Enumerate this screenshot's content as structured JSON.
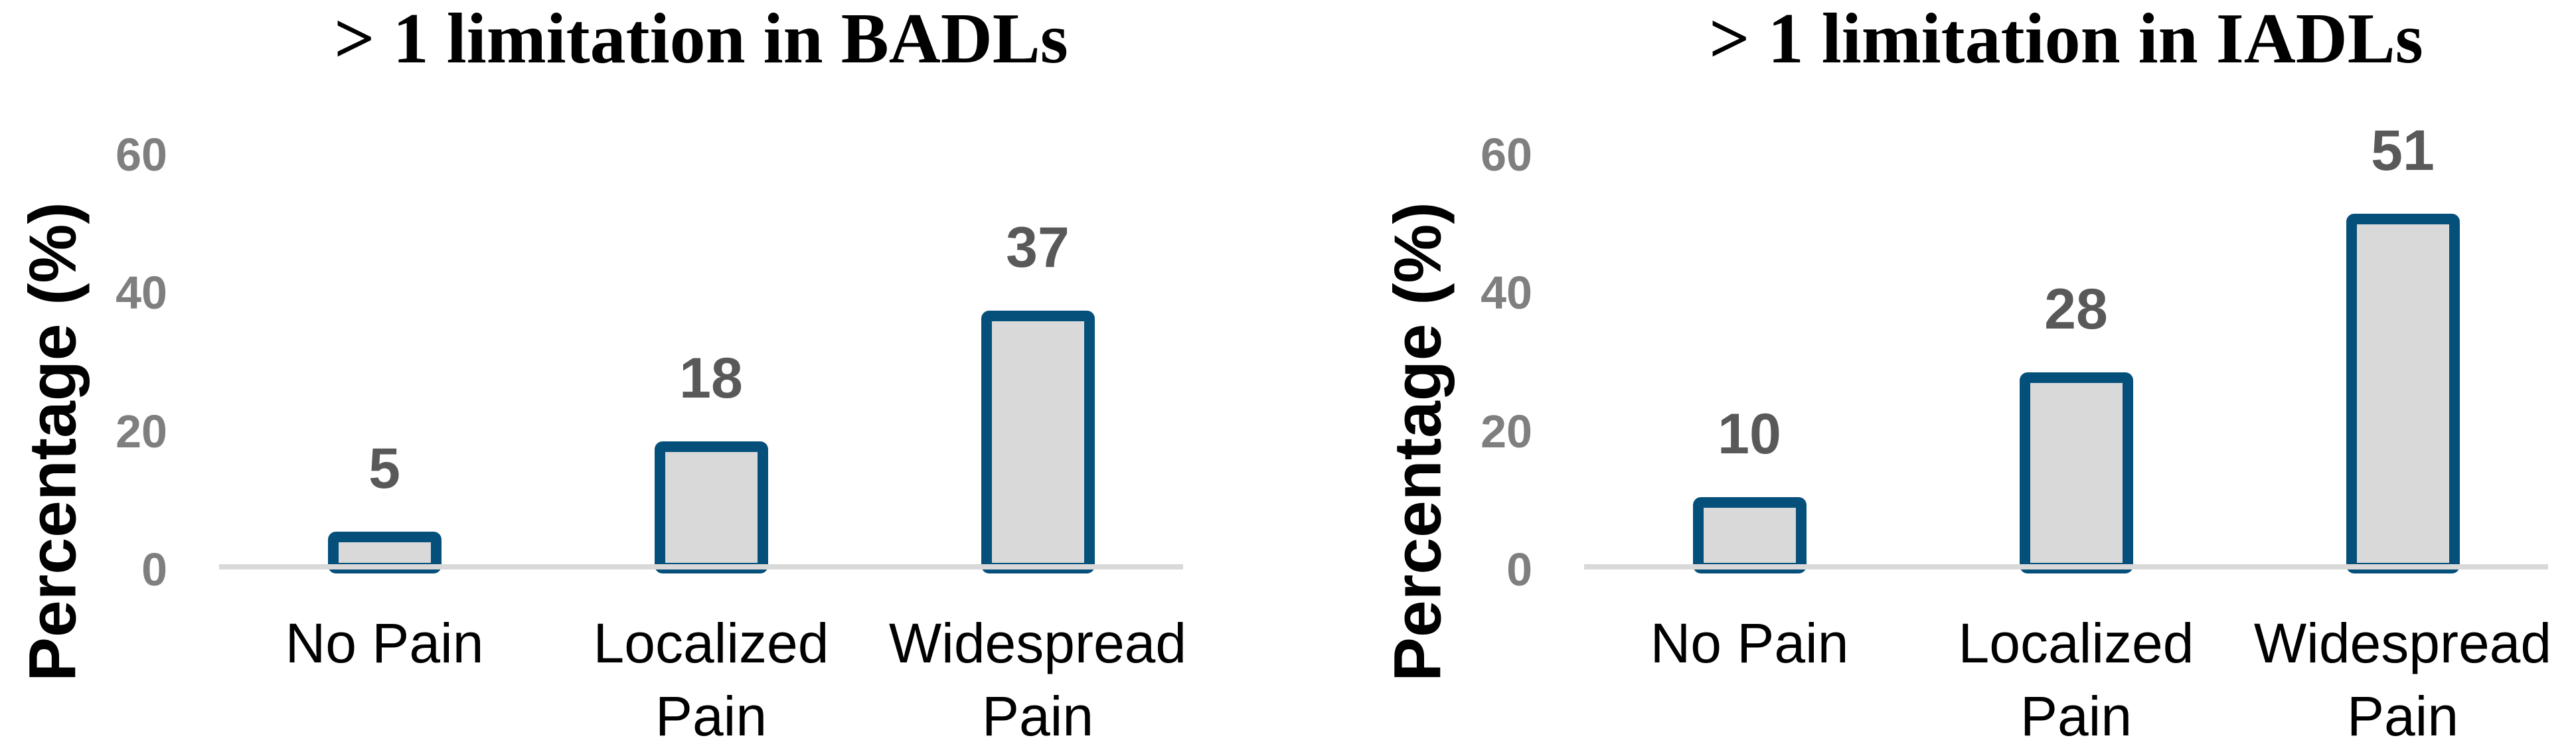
{
  "figure": {
    "background": "#ffffff"
  },
  "style": {
    "bar_fill": "#d9d9d9",
    "bar_border": "#05507b",
    "axis_line_color": "#d9d9d9",
    "tick_color": "#7f7f7f",
    "value_label_color": "#595959",
    "category_color": "#000000",
    "title_color": "#000000",
    "ylabel_color": "#000000"
  },
  "chart_data": [
    {
      "type": "bar",
      "title": "> 1 limitation in BADLs",
      "ylabel": "Percentage (%)",
      "xlabel": "",
      "categories": [
        "No Pain",
        "Localized Pain",
        "Widespread Pain"
      ],
      "category_lines": [
        [
          "No Pain"
        ],
        [
          "Localized",
          "Pain"
        ],
        [
          "Widespread",
          "Pain"
        ]
      ],
      "values": [
        5,
        18,
        37
      ],
      "value_labels": [
        "5",
        "18",
        "37"
      ],
      "yticks": [
        60,
        40,
        20,
        0
      ],
      "ylim": [
        0,
        60
      ],
      "grid": false,
      "legend": false
    },
    {
      "type": "bar",
      "title": "> 1 limitation in IADLs",
      "ylabel": "Percentage (%)",
      "xlabel": "",
      "categories": [
        "No Pain",
        "Localized Pain",
        "Widespread Pain"
      ],
      "category_lines": [
        [
          "No Pain"
        ],
        [
          "Localized",
          "Pain"
        ],
        [
          "Widespread",
          "Pain"
        ]
      ],
      "values": [
        10,
        28,
        51
      ],
      "value_labels": [
        "10",
        "28",
        "51"
      ],
      "yticks": [
        60,
        40,
        20,
        0
      ],
      "ylim": [
        0,
        60
      ],
      "grid": false,
      "legend": false
    }
  ]
}
